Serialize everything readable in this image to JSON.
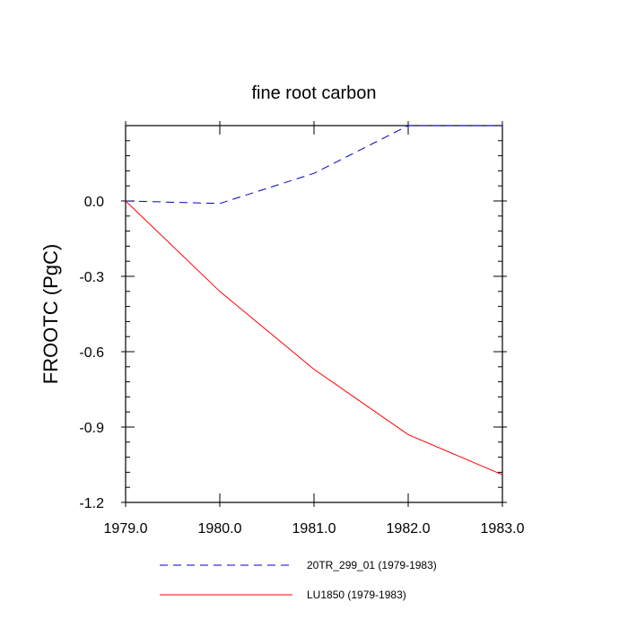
{
  "chart_data": {
    "type": "line",
    "title": "fine root carbon",
    "xlabel": "",
    "ylabel": "FROOTC  (PgC)",
    "xlim": [
      1979.0,
      1983.0
    ],
    "ylim": [
      -1.2,
      0.3
    ],
    "xticks": [
      1979.0,
      1980.0,
      1981.0,
      1982.0,
      1983.0
    ],
    "xtick_labels": [
      "1979.0",
      "1980.0",
      "1981.0",
      "1982.0",
      "1983.0"
    ],
    "yticks": [
      0.0,
      -0.3,
      -0.6,
      -0.9,
      -1.2
    ],
    "ytick_labels": [
      "0.0",
      "-0.3",
      "-0.6",
      "-0.9",
      "-1.2"
    ],
    "grid": false,
    "legend_position": "bottom",
    "series": [
      {
        "name": "20TR_299_01 (1979-1983)",
        "color": "#0000cc",
        "style": "dashed",
        "x": [
          1979.0,
          1980.0,
          1981.0,
          1982.0,
          1983.0
        ],
        "y": [
          0.0,
          -0.01,
          0.11,
          0.3,
          0.3
        ]
      },
      {
        "name": "LU1850 (1979-1983)",
        "color": "#ff0000",
        "style": "solid",
        "x": [
          1979.0,
          1980.0,
          1981.0,
          1982.0,
          1983.0
        ],
        "y": [
          0.0,
          -0.36,
          -0.67,
          -0.93,
          -1.09
        ]
      }
    ]
  }
}
